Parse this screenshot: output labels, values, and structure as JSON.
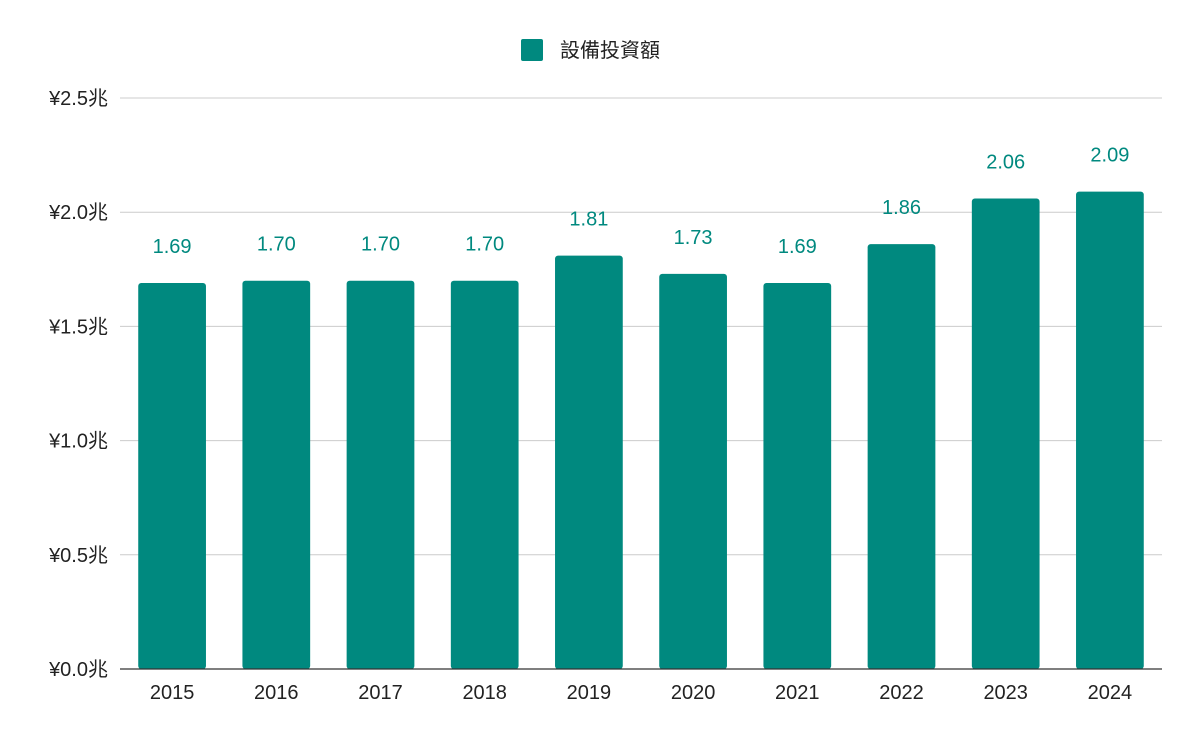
{
  "chart_data": {
    "type": "bar",
    "title": "",
    "xlabel": "",
    "ylabel": "",
    "legend": {
      "position": "top-center",
      "entries": [
        {
          "label": "設備投資額",
          "color": "#00897f"
        }
      ]
    },
    "categories": [
      "2015",
      "2016",
      "2017",
      "2018",
      "2019",
      "2020",
      "2021",
      "2022",
      "2023",
      "2024"
    ],
    "series": [
      {
        "name": "設備投資額",
        "color": "#00897f",
        "values": [
          1.69,
          1.7,
          1.7,
          1.7,
          1.81,
          1.73,
          1.69,
          1.86,
          2.06,
          2.09
        ],
        "data_labels": [
          "1.69",
          "1.70",
          "1.70",
          "1.70",
          "1.81",
          "1.73",
          "1.69",
          "1.86",
          "2.06",
          "2.09"
        ]
      }
    ],
    "ylim": [
      0,
      2.5
    ],
    "yticks": [
      0,
      0.5,
      1.0,
      1.5,
      2.0,
      2.5
    ],
    "ytick_labels": [
      "¥0.0兆",
      "¥0.5兆",
      "¥1.0兆",
      "¥1.5兆",
      "¥2.0兆",
      "¥2.5兆"
    ],
    "grid": true
  }
}
